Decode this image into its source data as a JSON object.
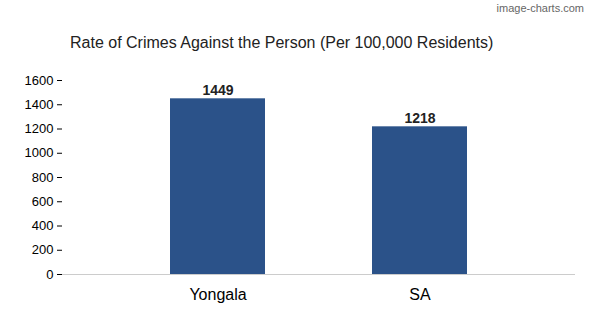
{
  "chart_data": {
    "type": "bar",
    "title": "Rate of Crimes Against the Person (Per 100,000 Residents)",
    "annotation": "image-charts.com",
    "categories": [
      "Yongala",
      "SA"
    ],
    "values": [
      1449,
      1218
    ],
    "color": "#2b5289",
    "ylim": [
      0,
      1600
    ],
    "yticks": [
      0,
      200,
      400,
      600,
      800,
      1000,
      1200,
      1400,
      1600
    ],
    "grid": false,
    "data_labels": true
  }
}
